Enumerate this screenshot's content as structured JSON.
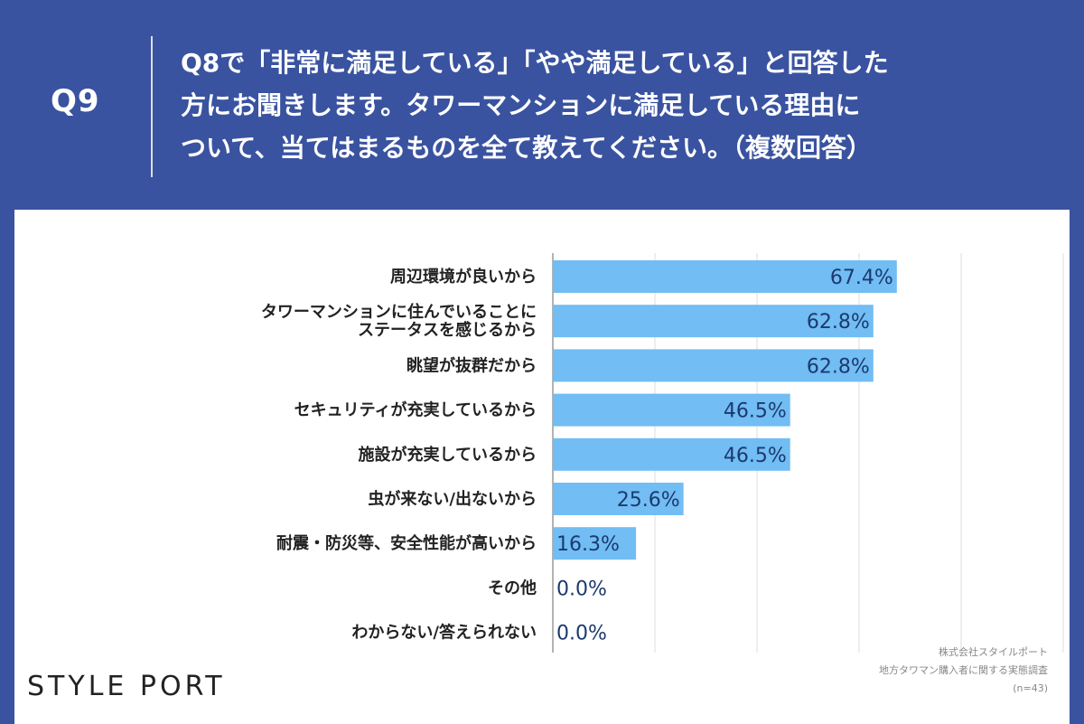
{
  "question": {
    "number": "Q9",
    "lines": [
      "Q8で「非常に満足している」「やや満足している」と回答した",
      "方にお聞きします。タワーマンションに満足している理由に",
      "ついて、当てはまるものを全て教えてください。（複数回答）"
    ]
  },
  "brand": "STYLE PORT",
  "source": {
    "company": "株式会社スタイルポート",
    "survey": "地方タワマン購入者に関する実態調査",
    "sample": "(n=43)"
  },
  "colors": {
    "header_bg": "#3a53a0",
    "bar": "#71bdf4",
    "value_text": "#1c3a6e"
  },
  "chart_data": {
    "type": "bar",
    "orientation": "horizontal",
    "unit": "%",
    "xlim": [
      0,
      100
    ],
    "grid": true,
    "categories": [
      "周辺環境が良いから",
      "タワーマンションに住んでいることに\nステータスを感じるから",
      "眺望が抜群だから",
      "セキュリティが充実しているから",
      "施設が充実しているから",
      "虫が来ない/出ないから",
      "耐震・防災等、安全性能が高いから",
      "その他",
      "わからない/答えられない"
    ],
    "values": [
      67.4,
      62.8,
      62.8,
      46.5,
      46.5,
      25.6,
      16.3,
      0.0,
      0.0
    ],
    "labels": [
      "67.4%",
      "62.8%",
      "62.8%",
      "46.5%",
      "46.5%",
      "25.6%",
      "16.3%",
      "0.0%",
      "0.0%"
    ]
  }
}
